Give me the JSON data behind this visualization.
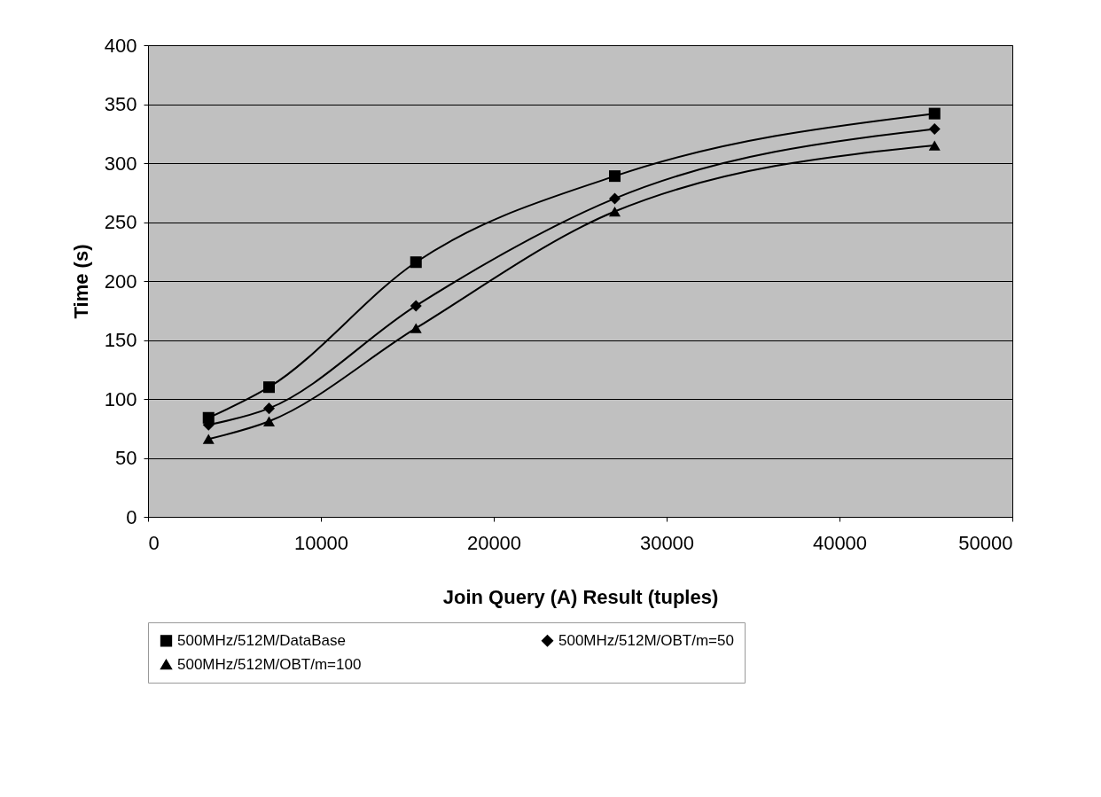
{
  "chart_data": {
    "type": "line",
    "xlabel": "Join Query (A) Result (tuples)",
    "ylabel": "Time (s)",
    "x": [
      3500,
      7000,
      15500,
      27000,
      45500
    ],
    "series": [
      {
        "name": "500MHz/512M/DataBase",
        "color": "#000000",
        "marker": "square",
        "values": [
          84,
          110,
          216,
          289,
          342
        ]
      },
      {
        "name": "500MHz/512M/OBT/m=50",
        "color": "#000000",
        "marker": "diamond",
        "values": [
          78,
          92,
          179,
          270,
          329
        ]
      },
      {
        "name": "500MHz/512M/OBT/m=100",
        "color": "#000000",
        "marker": "triangle",
        "values": [
          66,
          81,
          160,
          259,
          315
        ]
      }
    ],
    "xlim": [
      0,
      50000
    ],
    "xticks": [
      0,
      10000,
      20000,
      30000,
      40000,
      50000
    ],
    "ylim": [
      0,
      400
    ],
    "yticks": [
      0,
      50,
      100,
      150,
      200,
      250,
      300,
      350,
      400
    ],
    "grid": "y",
    "legend": "bottom",
    "line_style": "solid"
  }
}
